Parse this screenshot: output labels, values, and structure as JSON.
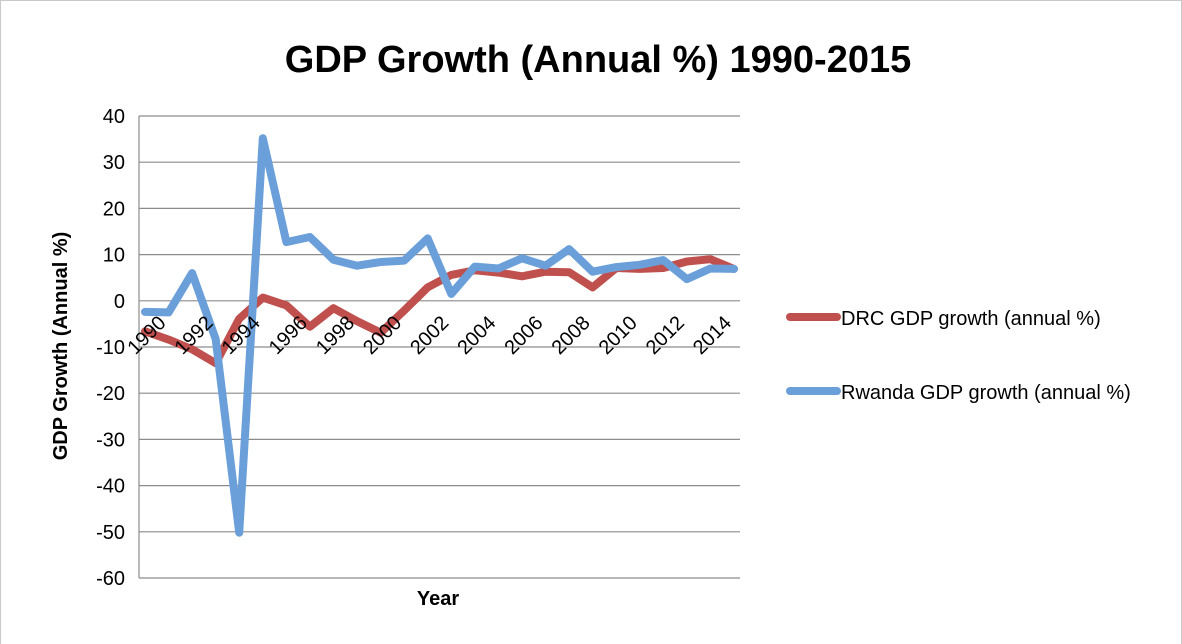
{
  "chart_data": {
    "type": "line",
    "title": "GDP Growth (Annual %) 1990-2015",
    "xlabel": "Year",
    "ylabel": "GDP Growth (Annual %)",
    "ylim": [
      -60,
      40
    ],
    "yticks": [
      "40",
      "30",
      "20",
      "10",
      "0",
      "-10",
      "-20",
      "-30",
      "-40",
      "-50",
      "-60"
    ],
    "x": [
      1990,
      1991,
      1992,
      1993,
      1994,
      1995,
      1996,
      1997,
      1998,
      1999,
      2000,
      2001,
      2002,
      2003,
      2004,
      2005,
      2006,
      2007,
      2008,
      2009,
      2010,
      2011,
      2012,
      2013,
      2014,
      2015
    ],
    "xtick_labels": [
      "1990",
      "1992",
      "1994",
      "1996",
      "1998",
      "2000",
      "2002",
      "2004",
      "2006",
      "2008",
      "2010",
      "2012",
      "2014"
    ],
    "legend_position": "right",
    "grid": true,
    "series": [
      {
        "name": "DRC GDP growth (annual %)",
        "color": "#c0504d",
        "values": [
          -6.6,
          -8.4,
          -10.5,
          -13.5,
          -3.9,
          0.7,
          -1.0,
          -5.6,
          -1.6,
          -4.4,
          -6.9,
          -2.1,
          2.9,
          5.6,
          6.6,
          6.1,
          5.3,
          6.3,
          6.2,
          2.9,
          7.1,
          6.9,
          7.1,
          8.5,
          9.0,
          6.9
        ]
      },
      {
        "name": "Rwanda GDP growth (annual %)",
        "color": "#6a9fda",
        "values": [
          -2.4,
          -2.5,
          6.0,
          -8.3,
          -50.2,
          35.2,
          12.7,
          13.8,
          8.9,
          7.6,
          8.4,
          8.7,
          13.5,
          1.5,
          7.4,
          7.0,
          9.2,
          7.6,
          11.2,
          6.3,
          7.3,
          7.8,
          8.8,
          4.7,
          7.0,
          6.9
        ]
      }
    ]
  }
}
